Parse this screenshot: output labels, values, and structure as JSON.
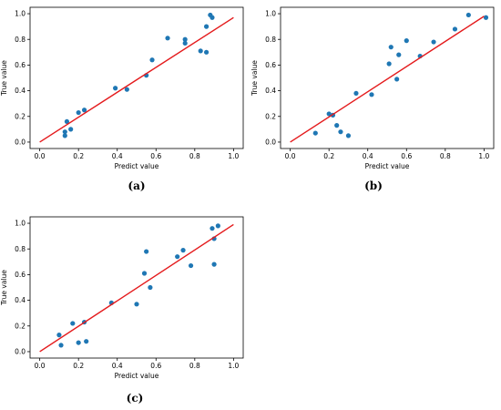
{
  "chart_data": [
    {
      "panel": "a",
      "caption": "(a)",
      "type": "scatter",
      "xlabel": "Predict value",
      "ylabel": "True value",
      "xlim": [
        -0.05,
        1.05
      ],
      "ylim": [
        -0.05,
        1.05
      ],
      "xticks": [
        "0.0",
        "0.2",
        "0.4",
        "0.6",
        "0.8",
        "1.0"
      ],
      "yticks": [
        "0.0",
        "0.2",
        "0.4",
        "0.6",
        "0.8",
        "1.0"
      ],
      "grid": false,
      "point_color": "#1f77b4",
      "line_color": "#e41a1c",
      "fit_line": {
        "x": [
          0.0,
          1.0
        ],
        "y": [
          0.0,
          0.97
        ]
      },
      "points": [
        {
          "x": 0.13,
          "y": 0.08
        },
        {
          "x": 0.13,
          "y": 0.05
        },
        {
          "x": 0.14,
          "y": 0.16
        },
        {
          "x": 0.16,
          "y": 0.1
        },
        {
          "x": 0.2,
          "y": 0.23
        },
        {
          "x": 0.23,
          "y": 0.25
        },
        {
          "x": 0.39,
          "y": 0.42
        },
        {
          "x": 0.45,
          "y": 0.41
        },
        {
          "x": 0.55,
          "y": 0.52
        },
        {
          "x": 0.58,
          "y": 0.64
        },
        {
          "x": 0.66,
          "y": 0.81
        },
        {
          "x": 0.75,
          "y": 0.8
        },
        {
          "x": 0.75,
          "y": 0.77
        },
        {
          "x": 0.83,
          "y": 0.71
        },
        {
          "x": 0.86,
          "y": 0.9
        },
        {
          "x": 0.86,
          "y": 0.7
        },
        {
          "x": 0.88,
          "y": 0.99
        },
        {
          "x": 0.89,
          "y": 0.97
        }
      ]
    },
    {
      "panel": "b",
      "caption": "(b)",
      "type": "scatter",
      "xlabel": "Predict value",
      "ylabel": "True value",
      "xlim": [
        -0.05,
        1.05
      ],
      "ylim": [
        -0.05,
        1.05
      ],
      "xticks": [
        "0.0",
        "0.2",
        "0.4",
        "0.6",
        "0.8",
        "1.0"
      ],
      "yticks": [
        "0.0",
        "0.2",
        "0.4",
        "0.6",
        "0.8",
        "1.0"
      ],
      "grid": false,
      "point_color": "#1f77b4",
      "line_color": "#e41a1c",
      "fit_line": {
        "x": [
          0.0,
          1.0
        ],
        "y": [
          0.0,
          0.98
        ]
      },
      "points": [
        {
          "x": 0.13,
          "y": 0.07
        },
        {
          "x": 0.2,
          "y": 0.22
        },
        {
          "x": 0.22,
          "y": 0.21
        },
        {
          "x": 0.24,
          "y": 0.13
        },
        {
          "x": 0.26,
          "y": 0.08
        },
        {
          "x": 0.3,
          "y": 0.05
        },
        {
          "x": 0.34,
          "y": 0.38
        },
        {
          "x": 0.42,
          "y": 0.37
        },
        {
          "x": 0.51,
          "y": 0.61
        },
        {
          "x": 0.52,
          "y": 0.74
        },
        {
          "x": 0.55,
          "y": 0.49
        },
        {
          "x": 0.56,
          "y": 0.68
        },
        {
          "x": 0.6,
          "y": 0.79
        },
        {
          "x": 0.67,
          "y": 0.67
        },
        {
          "x": 0.74,
          "y": 0.78
        },
        {
          "x": 0.85,
          "y": 0.88
        },
        {
          "x": 0.92,
          "y": 0.99
        },
        {
          "x": 1.01,
          "y": 0.97
        }
      ]
    },
    {
      "panel": "c",
      "caption": "(c)",
      "type": "scatter",
      "xlabel": "Predict value",
      "ylabel": "True value",
      "xlim": [
        -0.05,
        1.05
      ],
      "ylim": [
        -0.05,
        1.05
      ],
      "xticks": [
        "0.0",
        "0.2",
        "0.4",
        "0.6",
        "0.8",
        "1.0"
      ],
      "yticks": [
        "0.0",
        "0.2",
        "0.4",
        "0.6",
        "0.8",
        "1.0"
      ],
      "grid": false,
      "point_color": "#1f77b4",
      "line_color": "#e41a1c",
      "fit_line": {
        "x": [
          0.0,
          1.0
        ],
        "y": [
          0.0,
          0.99
        ]
      },
      "points": [
        {
          "x": 0.1,
          "y": 0.13
        },
        {
          "x": 0.11,
          "y": 0.05
        },
        {
          "x": 0.17,
          "y": 0.22
        },
        {
          "x": 0.2,
          "y": 0.07
        },
        {
          "x": 0.23,
          "y": 0.23
        },
        {
          "x": 0.24,
          "y": 0.08
        },
        {
          "x": 0.37,
          "y": 0.38
        },
        {
          "x": 0.5,
          "y": 0.37
        },
        {
          "x": 0.54,
          "y": 0.61
        },
        {
          "x": 0.55,
          "y": 0.78
        },
        {
          "x": 0.57,
          "y": 0.5
        },
        {
          "x": 0.71,
          "y": 0.74
        },
        {
          "x": 0.74,
          "y": 0.79
        },
        {
          "x": 0.78,
          "y": 0.67
        },
        {
          "x": 0.89,
          "y": 0.96
        },
        {
          "x": 0.9,
          "y": 0.88
        },
        {
          "x": 0.9,
          "y": 0.68
        },
        {
          "x": 0.92,
          "y": 0.98
        }
      ]
    }
  ]
}
